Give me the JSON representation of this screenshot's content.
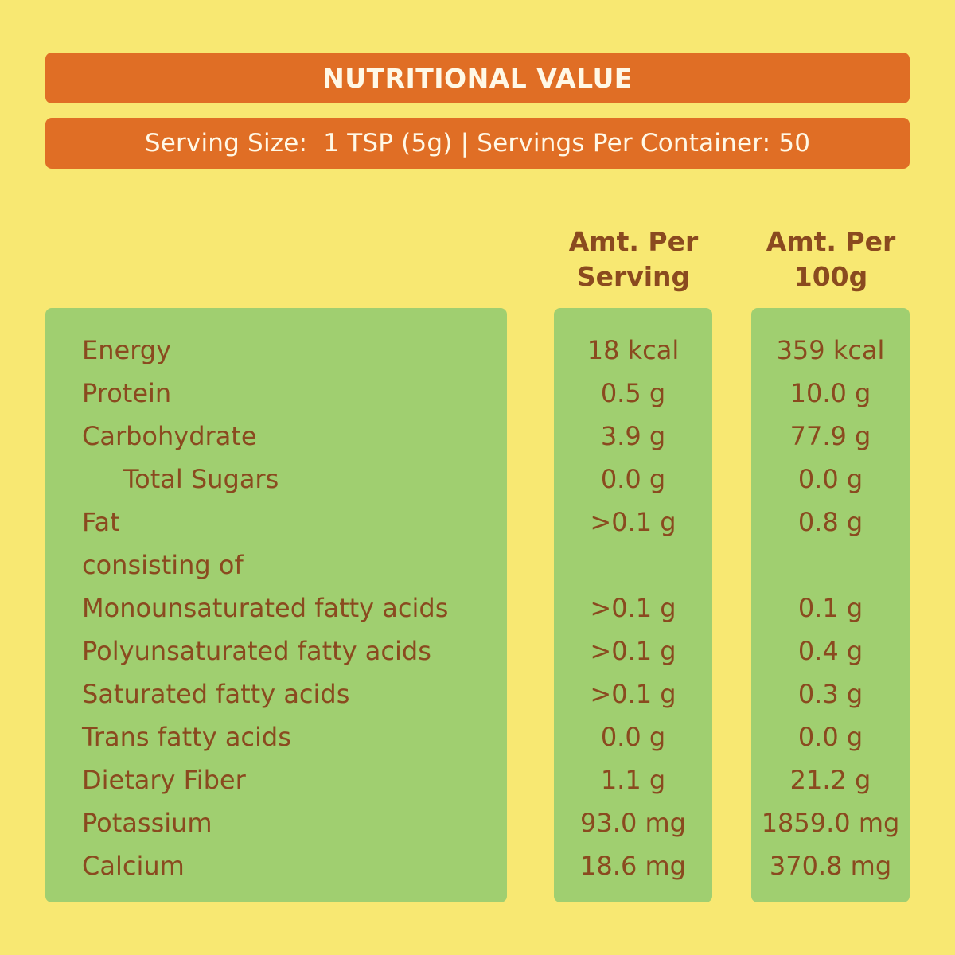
{
  "header": {
    "title": "NUTRITIONAL VALUE",
    "serving_size": "Serving Size:  1 TSP (5g)",
    "separator": "|",
    "servings_per_container": "Servings Per Container: 50"
  },
  "columns": {
    "per_serving": {
      "line1": "Amt. Per",
      "line2": "Serving"
    },
    "per_100g": {
      "line1": "Amt. Per",
      "line2": "100g"
    }
  },
  "nutrients": [
    {
      "label": "Energy",
      "per_serving": "18 kcal",
      "per_100g": "359 kcal"
    },
    {
      "label": "Protein",
      "per_serving": "0.5 g",
      "per_100g": "10.0 g"
    },
    {
      "label": "Carbohydrate",
      "per_serving": "3.9 g",
      "per_100g": "77.9 g"
    },
    {
      "label": "Total Sugars",
      "per_serving": "0.0 g",
      "per_100g": "0.0 g",
      "indent": true
    },
    {
      "label": "Fat",
      "per_serving": ">0.1 g",
      "per_100g": "0.8 g"
    },
    {
      "label": "consisting of",
      "per_serving": "",
      "per_100g": ""
    },
    {
      "label": "Monounsaturated fatty acids",
      "per_serving": ">0.1 g",
      "per_100g": "0.1 g"
    },
    {
      "label": "Polyunsaturated fatty acids",
      "per_serving": ">0.1 g",
      "per_100g": "0.4 g"
    },
    {
      "label": "Saturated fatty acids",
      "per_serving": ">0.1 g",
      "per_100g": "0.3 g"
    },
    {
      "label": "Trans fatty acids",
      "per_serving": "0.0 g",
      "per_100g": "0.0 g"
    },
    {
      "label": "Dietary Fiber",
      "per_serving": "1.1 g",
      "per_100g": "21.2 g"
    },
    {
      "label": "Potassium",
      "per_serving": "93.0 mg",
      "per_100g": "1859.0 mg"
    },
    {
      "label": "Calcium",
      "per_serving": "18.6 mg",
      "per_100g": "370.8 mg"
    }
  ],
  "colors": {
    "background": "#f8e872",
    "banner": "#e06e25",
    "panel": "#a0cf70",
    "text": "#8a4a1f",
    "banner_text": "#fff8e6"
  }
}
